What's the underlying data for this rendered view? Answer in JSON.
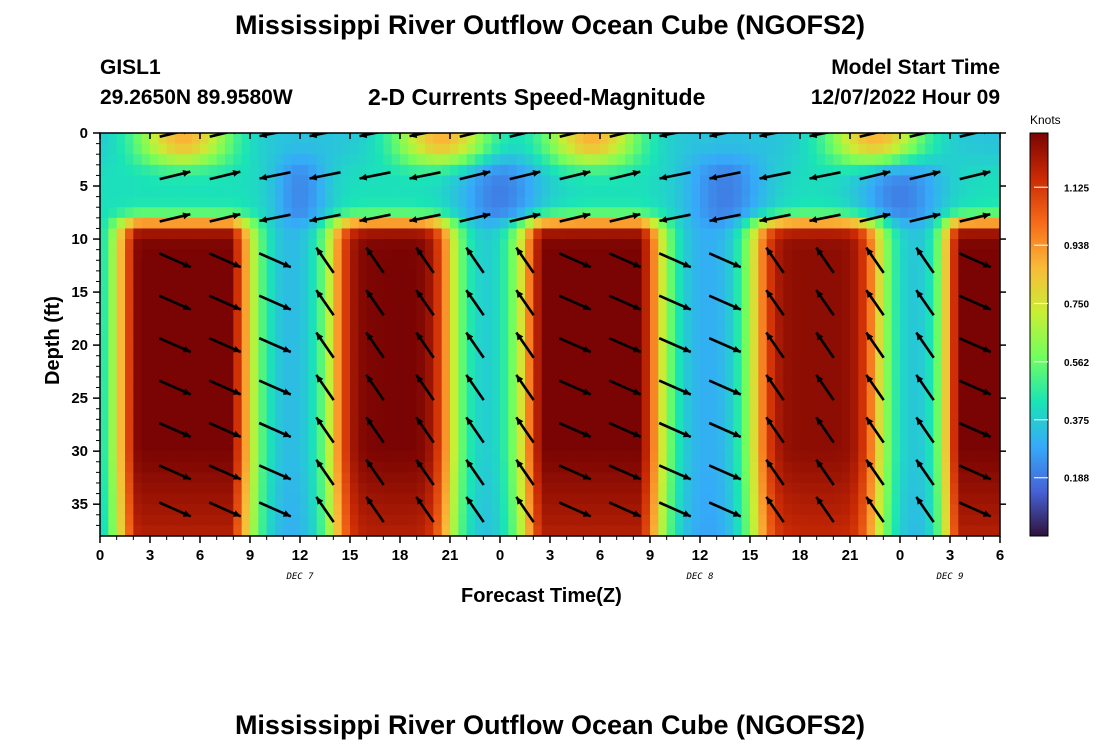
{
  "page": {
    "title": "Mississippi River Outflow Ocean Cube (NGOFS2)",
    "title_repeat": "Mississippi River Outflow Ocean Cube (NGOFS2)",
    "station_id": "GISL1",
    "station_coords": "29.2650N  89.9580W",
    "plot_title": "2-D Currents Speed-Magnitude",
    "model_start_label": "Model Start Time",
    "model_start_value": "12/07/2022 Hour 09"
  },
  "chart_data": {
    "type": "heatmap",
    "title": "2-D Currents Speed-Magnitude",
    "xlabel": "Forecast Time(Z)",
    "ylabel": "Depth (ft)",
    "colorbar_label": "Knots",
    "x_tick_labels": [
      "0",
      "3",
      "6",
      "9",
      "12",
      "15",
      "18",
      "21",
      "0",
      "3",
      "6",
      "9",
      "12",
      "15",
      "18",
      "21",
      "0",
      "3",
      "6"
    ],
    "x_range_hours": [
      0,
      54
    ],
    "date_labels": [
      {
        "text": "DEC 7",
        "hour": 12
      },
      {
        "text": "DEC 8",
        "hour": 36
      },
      {
        "text": "DEC 9",
        "hour": 51
      }
    ],
    "y_ticks": [
      0,
      5,
      10,
      15,
      20,
      25,
      30,
      35
    ],
    "ylim": [
      0,
      38
    ],
    "y_inverted": true,
    "colorbar_ticks": [
      "1.125",
      "0.938",
      "0.750",
      "0.562",
      "0.375",
      "0.188"
    ],
    "colorbar_range": [
      0,
      1.3
    ],
    "colormap": [
      "#30123b",
      "#4662d7",
      "#36aaf9",
      "#1ae4b6",
      "#72fe5e",
      "#c8ef34",
      "#faba39",
      "#f66b19",
      "#ca2a04",
      "#7a0403"
    ],
    "arrow_rows_depth_ft": [
      0,
      4,
      8,
      12,
      16,
      20,
      24,
      28,
      32,
      35.5
    ],
    "arrow_columns_hour": [
      3,
      6,
      9,
      12,
      15,
      18,
      21,
      24,
      27,
      30,
      33,
      36,
      39,
      42,
      45,
      48,
      51
    ],
    "surface_peaks_hour": [
      5,
      20.5,
      29.5,
      46.5
    ],
    "deep_peaks": [
      {
        "hour": 5,
        "amplitude": 1.28,
        "half_width_h": 2.5
      },
      {
        "hour": 17.5,
        "amplitude": 1.12,
        "half_width_h": 2.2
      },
      {
        "hour": 29.5,
        "amplitude": 1.3,
        "half_width_h": 2.6
      },
      {
        "hour": 43,
        "amplitude": 1.1,
        "half_width_h": 2.4
      },
      {
        "hour": 53.5,
        "amplitude": 1.25,
        "half_width_h": 1.3
      }
    ],
    "grid": false
  }
}
